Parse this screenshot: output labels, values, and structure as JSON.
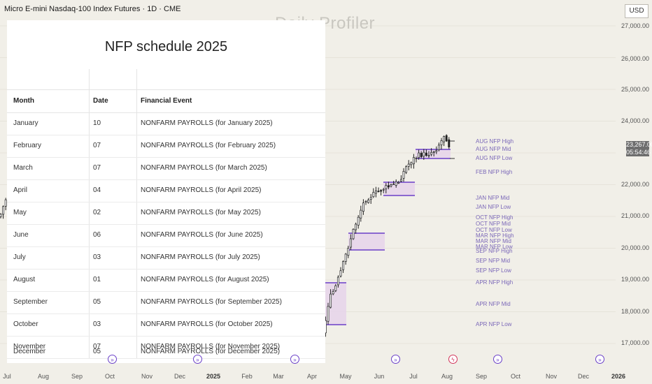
{
  "header": {
    "symbol": "Micro E-mini Nasdaq-100 Index Futures · 1D · CME",
    "watermark": "Daily Profiler",
    "currency": "USD"
  },
  "price_axis": {
    "ticks": [
      "27,000.00",
      "26,000.00",
      "25,000.00",
      "24,000.00",
      "23,000.00",
      "22,000.00",
      "21,000.00",
      "20,000.00",
      "19,000.00",
      "18,000.00",
      "17,000.00"
    ],
    "last_price": "23,267.00",
    "countdown": "05:54:46"
  },
  "time_axis": {
    "labels": [
      "Jul",
      "Aug",
      "Sep",
      "Oct",
      "Nov",
      "Dec",
      "2025",
      "Feb",
      "Mar",
      "Apr",
      "May",
      "Jun",
      "Jul",
      "Aug",
      "Sep",
      "Oct",
      "Nov",
      "Dec",
      "2026"
    ]
  },
  "table": {
    "title": "NFP schedule 2025",
    "headers": {
      "month": "Month",
      "date": "Date",
      "event": "Financial Event"
    },
    "rows": [
      {
        "month": "January",
        "date": "10",
        "event": "NONFARM PAYROLLS (for January 2025)"
      },
      {
        "month": "February",
        "date": "07",
        "event": "NONFARM PAYROLLS (for February 2025)"
      },
      {
        "month": "March",
        "date": "07",
        "event": "NONFARM PAYROLLS (for March 2025)"
      },
      {
        "month": "April",
        "date": "04",
        "event": "NONFARM PAYROLLS (for April 2025)"
      },
      {
        "month": "May",
        "date": "02",
        "event": "NONFARM PAYROLLS (for May 2025)"
      },
      {
        "month": "June",
        "date": "06",
        "event": "NONFARM PAYROLLS (for June 2025)"
      },
      {
        "month": "July",
        "date": "03",
        "event": "NONFARM PAYROLLS (for July 2025)"
      },
      {
        "month": "August",
        "date": "01",
        "event": "NONFARM PAYROLLS (for August 2025)"
      },
      {
        "month": "September",
        "date": "05",
        "event": "NONFARM PAYROLLS (for September 2025)"
      },
      {
        "month": "October",
        "date": "03",
        "event": "NONFARM PAYROLLS (for October 2025)"
      },
      {
        "month": "November",
        "date": "07",
        "event": "NONFARM PAYROLLS (for November 2025)"
      },
      {
        "month": "December",
        "date": "05",
        "event": "NONFARM PAYROLLS (for December 2025)"
      }
    ]
  },
  "level_labels": [
    "AUG NFP High",
    "AUG NFP Mid",
    "AUG NFP Low",
    "FEB NFP High",
    "JAN NFP Mid",
    "JAN NFP Low",
    "OCT NFP High",
    "OCT NFP Mid",
    "OCT NFP Low",
    "MAR NFP High",
    "MAR NFP Mid",
    "MAR NFP Low",
    "SEP NFP High",
    "SEP NFP Mid",
    "SEP NFP Low",
    "APR NFP High",
    "APR NFP Mid",
    "APR NFP Low"
  ],
  "event_icon": "arrow-circle-icon",
  "colors": {
    "accent": "#6a3fc8",
    "box_fill": "#e6d3ea",
    "background": "#f1efe8"
  }
}
